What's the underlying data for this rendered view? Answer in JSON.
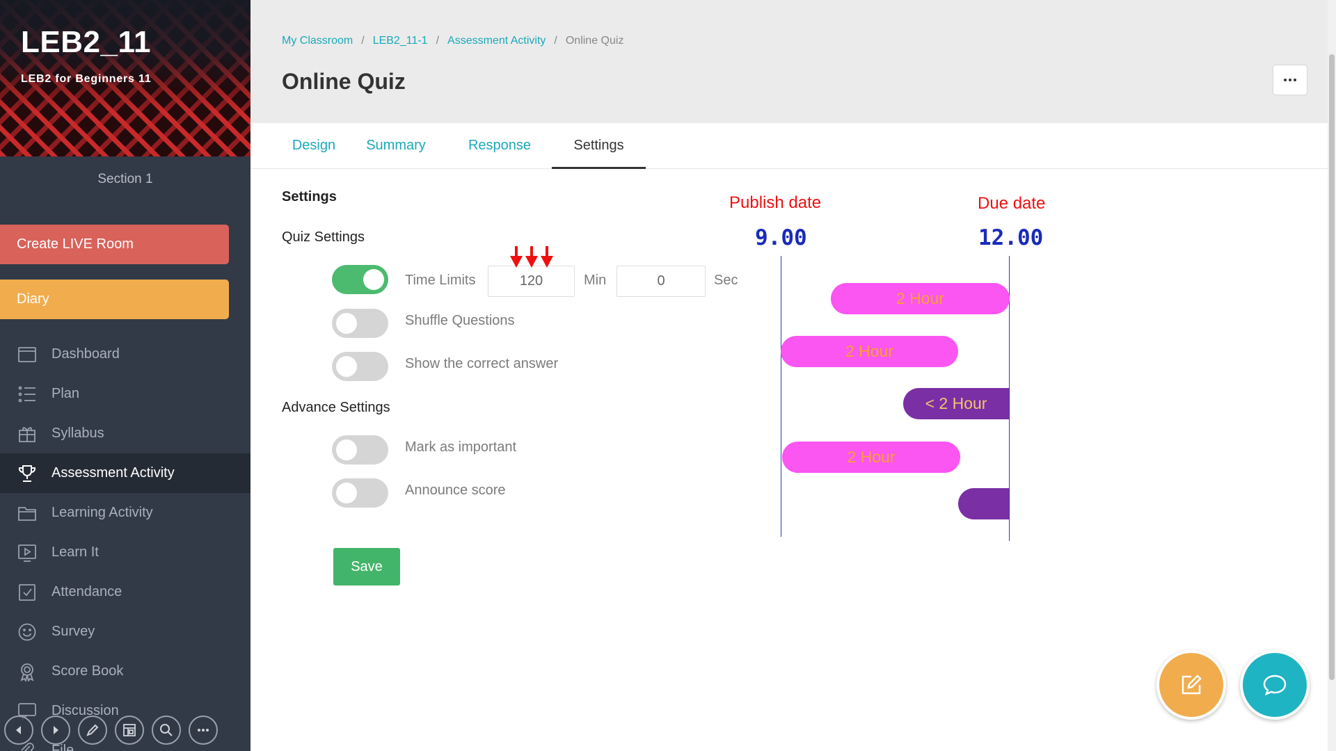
{
  "sidebar": {
    "class_title": "LEB2_11",
    "class_subtitle": "LEB2 for Beginners 11",
    "section": "Section 1",
    "live_button": "Create LIVE Room",
    "diary_button": "Diary",
    "nav": [
      {
        "label": "Dashboard",
        "icon": "dashboard-icon"
      },
      {
        "label": "Plan",
        "icon": "plan-list-icon"
      },
      {
        "label": "Syllabus",
        "icon": "syllabus-icon"
      },
      {
        "label": "Assessment Activity",
        "icon": "trophy-icon",
        "active": true
      },
      {
        "label": "Learning Activity",
        "icon": "folder-icon"
      },
      {
        "label": "Learn It",
        "icon": "play-icon"
      },
      {
        "label": "Attendance",
        "icon": "checkbox-icon"
      },
      {
        "label": "Survey",
        "icon": "smiley-icon"
      },
      {
        "label": "Score Book",
        "icon": "award-icon"
      },
      {
        "label": "Discussion",
        "icon": "chat-icon"
      },
      {
        "label": "File",
        "icon": "clip-icon"
      }
    ],
    "bottom_tools": [
      "back-icon",
      "forward-icon",
      "pen-icon",
      "layout-icon",
      "search-icon",
      "more-icon"
    ]
  },
  "breadcrumb": [
    "My Classroom",
    "LEB2_11-1",
    "Assessment Activity",
    "Online Quiz"
  ],
  "page_title": "Online Quiz",
  "tabs": [
    "Design",
    "Summary",
    "Response",
    "Settings"
  ],
  "active_tab": "Settings",
  "settings": {
    "heading": "Settings",
    "quiz_settings_heading": "Quiz Settings",
    "time_limits": {
      "label": "Time Limits",
      "enabled": true,
      "minutes": "120",
      "min_unit": "Min",
      "seconds": "0",
      "sec_unit": "Sec"
    },
    "shuffle_questions": {
      "label": "Shuffle Questions",
      "enabled": false
    },
    "show_correct_answer": {
      "label": "Show the correct answer",
      "enabled": false
    },
    "advance_settings_heading": "Advance Settings",
    "mark_important": {
      "label": "Mark as important",
      "enabled": false
    },
    "announce_score": {
      "label": "Announce score",
      "enabled": false
    },
    "save_label": "Save"
  },
  "annotation": {
    "publish_label": "Publish date",
    "due_label": "Due date",
    "publish_time": "9.00",
    "due_time": "12.00",
    "bars": [
      "2 Hour",
      "2 Hour",
      "< 2 Hour",
      "2 Hour",
      ""
    ],
    "colors": {
      "label": "#ee1010",
      "time": "#1a2bb8",
      "bar_pink": "#fb55f2",
      "bar_purple": "#7a2fa5",
      "bar_text": "#f7a22d"
    }
  },
  "colors": {
    "sidebar": "#323a47",
    "accent": "#1ba8b9",
    "live": "#d9625a",
    "diary": "#f1ac4d",
    "toggle_on": "#4cbb6f",
    "save": "#43b56a"
  }
}
